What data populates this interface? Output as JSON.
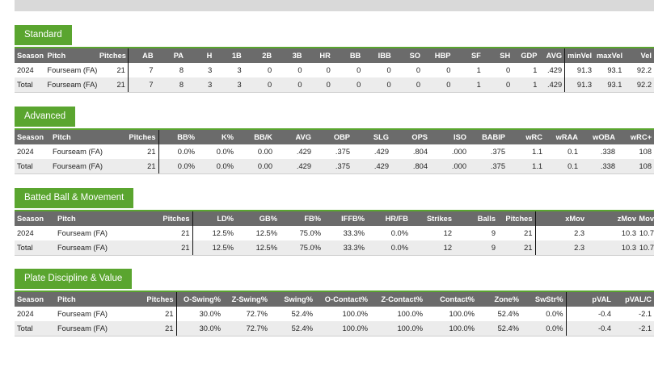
{
  "sections": [
    {
      "tab": "Standard",
      "headers": [
        "Season",
        "Pitch",
        "Pitches",
        "AB",
        "PA",
        "H",
        "1B",
        "2B",
        "3B",
        "HR",
        "BB",
        "IBB",
        "SO",
        "HBP",
        "SF",
        "SH",
        "GDP",
        "AVG",
        "minVel",
        "maxVel",
        "Vel"
      ],
      "rows": [
        [
          "2024",
          "Fourseam (FA)",
          "21",
          "7",
          "8",
          "3",
          "3",
          "0",
          "0",
          "0",
          "0",
          "0",
          "0",
          "0",
          "1",
          "0",
          "1",
          ".429",
          "91.3",
          "93.1",
          "92.2"
        ],
        [
          "Total",
          "Fourseam (FA)",
          "21",
          "7",
          "8",
          "3",
          "3",
          "0",
          "0",
          "0",
          "0",
          "0",
          "0",
          "0",
          "1",
          "0",
          "1",
          ".429",
          "91.3",
          "93.1",
          "92.2"
        ]
      ]
    },
    {
      "tab": "Advanced",
      "headers": [
        "Season",
        "Pitch",
        "Pitches",
        "BB%",
        "K%",
        "BB/K",
        "AVG",
        "OBP",
        "SLG",
        "OPS",
        "ISO",
        "BABIP",
        "wRC",
        "wRAA",
        "wOBA",
        "wRC+"
      ],
      "rows": [
        [
          "2024",
          "Fourseam (FA)",
          "21",
          "0.0%",
          "0.0%",
          "0.00",
          ".429",
          ".375",
          ".429",
          ".804",
          ".000",
          ".375",
          "1.1",
          "0.1",
          ".338",
          "108"
        ],
        [
          "Total",
          "Fourseam (FA)",
          "21",
          "0.0%",
          "0.0%",
          "0.00",
          ".429",
          ".375",
          ".429",
          ".804",
          ".000",
          ".375",
          "1.1",
          "0.1",
          ".338",
          "108"
        ]
      ]
    },
    {
      "tab": "Batted Ball & Movement",
      "headers": [
        "Season",
        "Pitch",
        "Pitches",
        "LD%",
        "GB%",
        "FB%",
        "IFFB%",
        "HR/FB",
        "Strikes",
        "Balls",
        "Pitches",
        "xMov",
        "zMov",
        "Mov"
      ],
      "rows": [
        [
          "2024",
          "Fourseam (FA)",
          "21",
          "12.5%",
          "12.5%",
          "75.0%",
          "33.3%",
          "0.0%",
          "12",
          "9",
          "21",
          "2.3",
          "10.3",
          "10.7"
        ],
        [
          "Total",
          "Fourseam (FA)",
          "21",
          "12.5%",
          "12.5%",
          "75.0%",
          "33.3%",
          "0.0%",
          "12",
          "9",
          "21",
          "2.3",
          "10.3",
          "10.7"
        ]
      ]
    },
    {
      "tab": "Plate Discipline & Value",
      "headers": [
        "Season",
        "Pitch",
        "Pitches",
        "O-Swing%",
        "Z-Swing%",
        "Swing%",
        "O-Contact%",
        "Z-Contact%",
        "Contact%",
        "Zone%",
        "SwStr%",
        "pVAL",
        "pVAL/C"
      ],
      "rows": [
        [
          "2024",
          "Fourseam (FA)",
          "21",
          "30.0%",
          "72.7%",
          "52.4%",
          "100.0%",
          "100.0%",
          "100.0%",
          "52.4%",
          "0.0%",
          "-0.4",
          "-2.1"
        ],
        [
          "Total",
          "Fourseam (FA)",
          "21",
          "30.0%",
          "72.7%",
          "52.4%",
          "100.0%",
          "100.0%",
          "100.0%",
          "52.4%",
          "0.0%",
          "-0.4",
          "-2.1"
        ]
      ]
    }
  ]
}
